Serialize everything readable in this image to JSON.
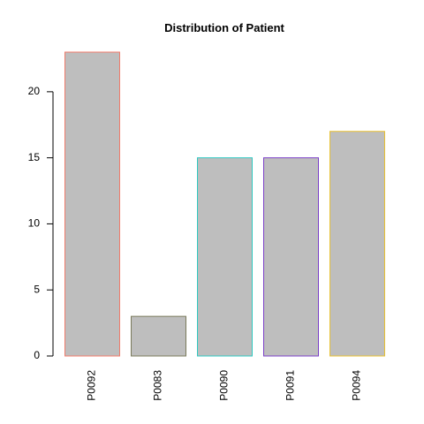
{
  "chart_data": {
    "type": "bar",
    "title": "Distribution of Patient",
    "xlabel": "",
    "ylabel": "",
    "categories": [
      "P0092",
      "P0083",
      "P0090",
      "P0091",
      "P0094"
    ],
    "values": [
      23,
      3,
      15,
      15,
      17
    ],
    "ylim": [
      0,
      23
    ],
    "yticks": [
      0,
      5,
      10,
      15,
      20
    ],
    "bar_fill": "#bebebe",
    "bar_borders": [
      "#f07a6a",
      "#7a7a5a",
      "#2ec8c0",
      "#7a3fc8",
      "#e8c030"
    ],
    "grid": false,
    "legend": "none"
  }
}
